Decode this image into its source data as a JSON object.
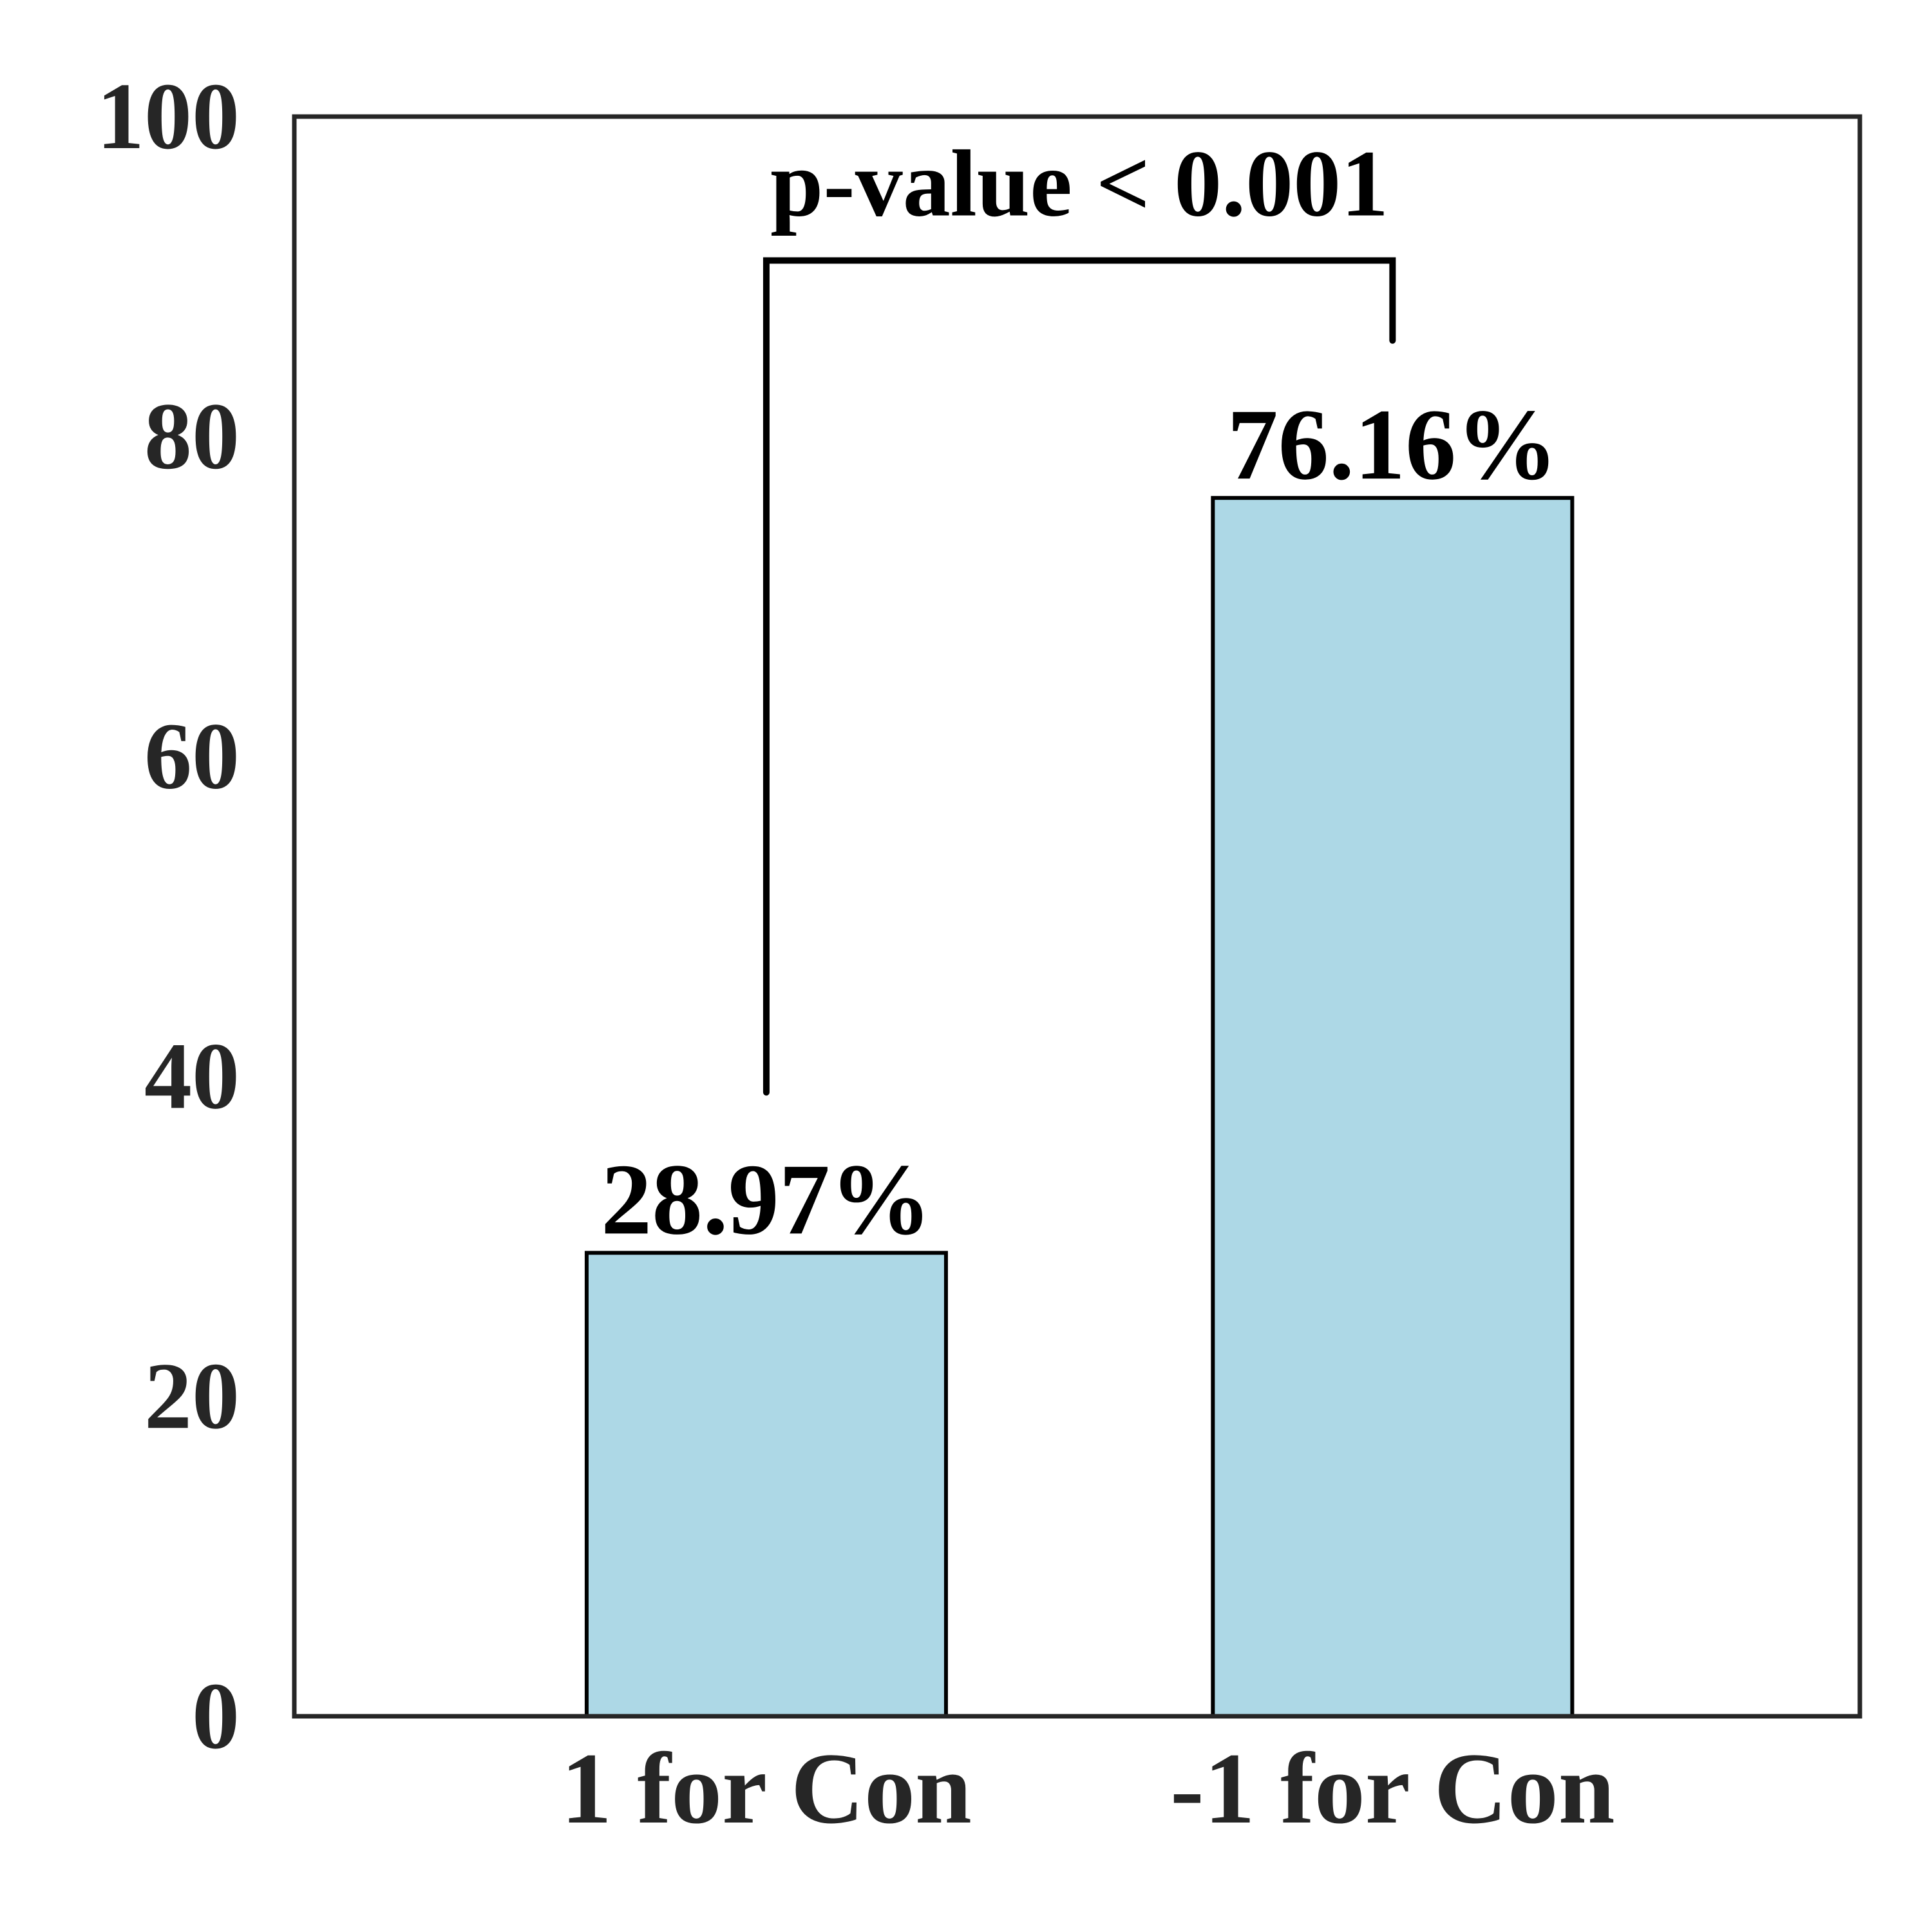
{
  "chart_data": {
    "type": "bar",
    "title": "",
    "xlabel": "",
    "ylabel": "",
    "categories": [
      "1 for Con",
      "-1 for Con"
    ],
    "values": [
      28.97,
      76.16
    ],
    "value_labels": [
      "28.97%",
      "76.16%"
    ],
    "ylim": [
      0,
      100
    ],
    "yticks": [
      0,
      20,
      40,
      60,
      80,
      100
    ],
    "ytick_labels": [
      "0",
      "20",
      "40",
      "60",
      "80",
      "100"
    ],
    "grid": false,
    "legend": "none",
    "annotation": {
      "text": "p-value < 0.001",
      "bracket_top": 91,
      "left_end": 39,
      "right_end": 86
    },
    "colors": {
      "bar_fill": "#add8e6",
      "bar_edge": "#000000",
      "axes_edge": "#262626",
      "text": "#262626"
    }
  }
}
